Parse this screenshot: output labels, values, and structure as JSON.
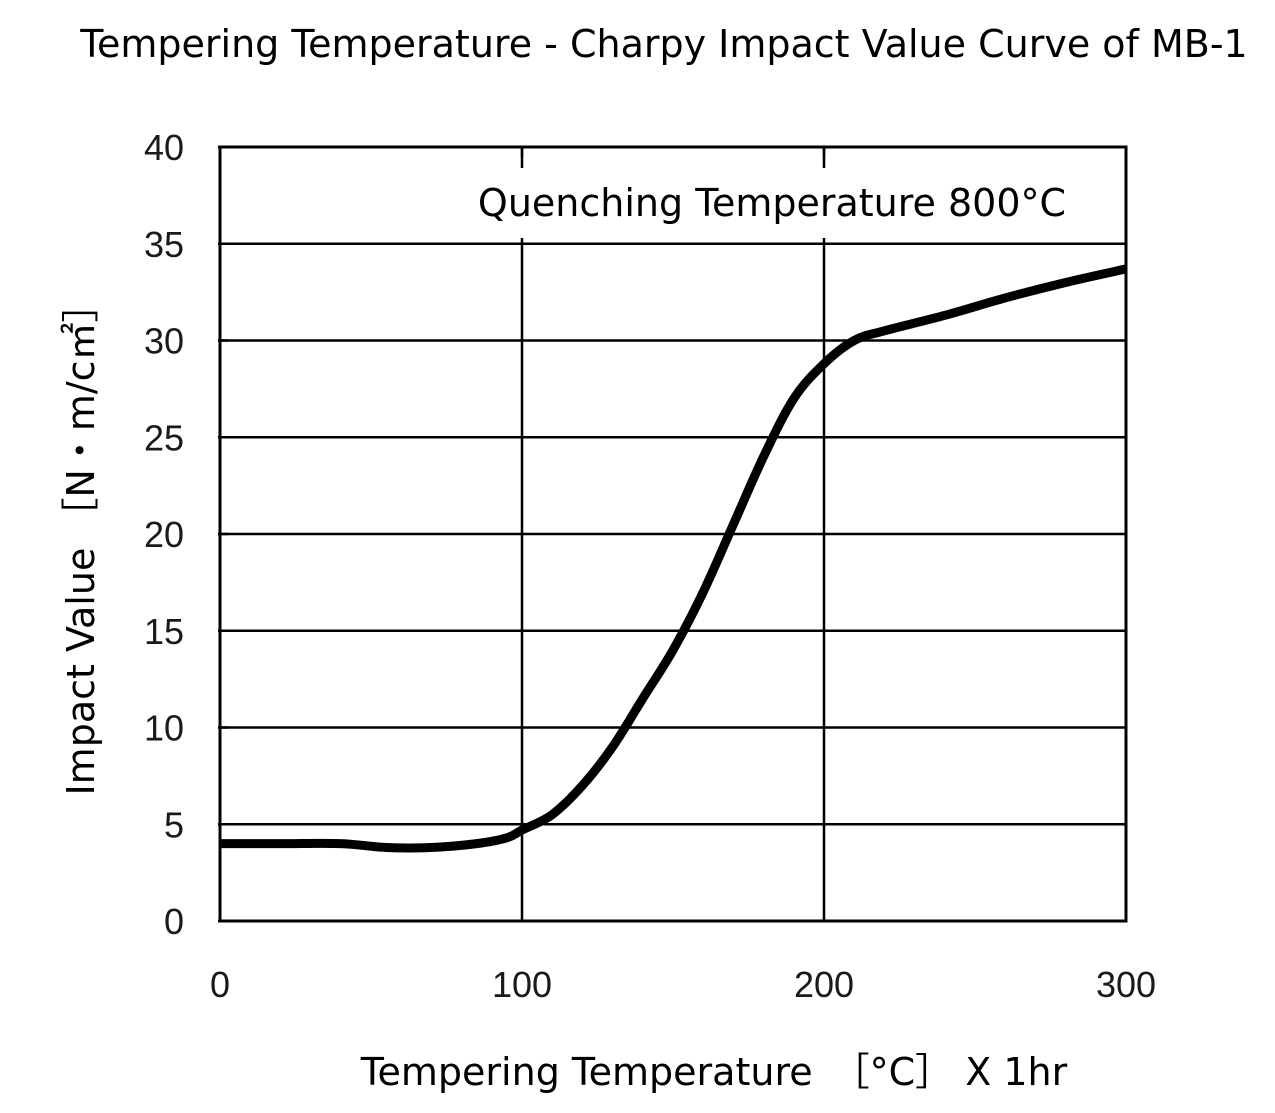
{
  "chart_data": {
    "type": "line",
    "title": "Tempering Temperature - Charpy Impact Value Curve of MB-1",
    "xlabel": "Tempering Temperature　［°C］ X 1hr",
    "ylabel": "Impact Value ［N・m/c㎡］",
    "annotation": "Quenching Temperature 800°C",
    "xlim": [
      0,
      300
    ],
    "ylim": [
      0,
      40
    ],
    "xticks": [
      0,
      100,
      200,
      300
    ],
    "yticks": [
      0,
      5,
      10,
      15,
      20,
      25,
      30,
      35,
      40
    ],
    "grid": true,
    "series": [
      {
        "x": [
          0,
          20,
          40,
          55,
          70,
          85,
          95,
          100,
          110,
          120,
          130,
          140,
          150,
          160,
          170,
          180,
          190,
          200,
          210,
          220,
          240,
          260,
          280,
          300
        ],
        "y": [
          4.0,
          4.0,
          4.0,
          3.8,
          3.8,
          4.0,
          4.3,
          4.7,
          5.5,
          7.0,
          9.0,
          11.5,
          14.0,
          17.0,
          20.5,
          24.0,
          27.0,
          28.8,
          30.0,
          30.5,
          31.3,
          32.2,
          33.0,
          33.7
        ]
      }
    ]
  },
  "colors": {
    "line": "#000000",
    "grid": "#000000",
    "text": "#000000"
  }
}
